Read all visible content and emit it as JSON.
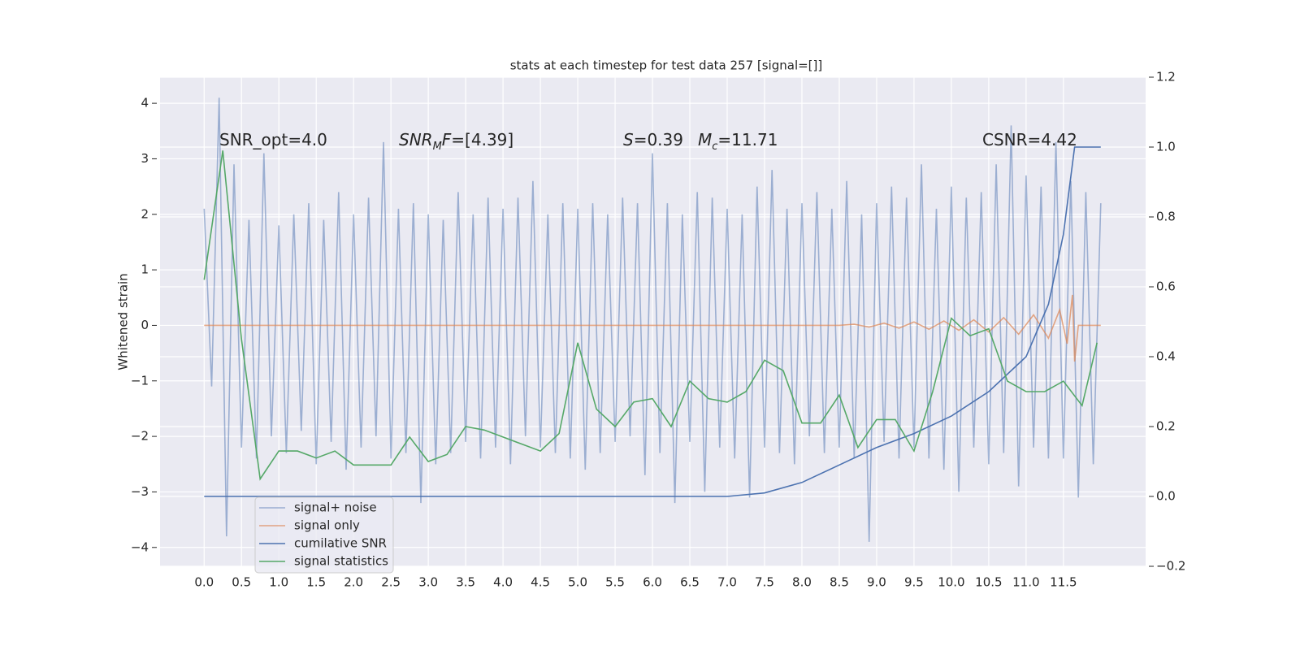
{
  "chart_data": {
    "type": "line",
    "title": "stats at each timestep for test data 257 [signal=[]]",
    "y_label": "Whitened strain",
    "xlim": [
      -0.59,
      12.6
    ],
    "ylim": [
      -4.34,
      4.47
    ],
    "y2lim": [
      -0.2,
      1.2
    ],
    "xticks": [
      {
        "value": 0,
        "label": "0.0"
      },
      {
        "value": 0.5,
        "label": "0.5"
      },
      {
        "value": 1,
        "label": "1.0"
      },
      {
        "value": 1.5,
        "label": "1.5"
      },
      {
        "value": 2,
        "label": "2.0"
      },
      {
        "value": 2.5,
        "label": "2.5"
      },
      {
        "value": 3,
        "label": "3.0"
      },
      {
        "value": 3.5,
        "label": "3.5"
      },
      {
        "value": 4,
        "label": "4.0"
      },
      {
        "value": 4.5,
        "label": "4.5"
      },
      {
        "value": 5,
        "label": "5.0"
      },
      {
        "value": 5.5,
        "label": "5.5"
      },
      {
        "value": 6,
        "label": "6.0"
      },
      {
        "value": 6.5,
        "label": "6.5"
      },
      {
        "value": 7,
        "label": "7.0"
      },
      {
        "value": 7.5,
        "label": "7.5"
      },
      {
        "value": 8,
        "label": "8.0"
      },
      {
        "value": 8.5,
        "label": "8.5"
      },
      {
        "value": 9,
        "label": "9.0"
      },
      {
        "value": 9.5,
        "label": "9.5"
      },
      {
        "value": 10,
        "label": "10.0"
      },
      {
        "value": 10.5,
        "label": "10.5"
      },
      {
        "value": 11,
        "label": "11.0"
      },
      {
        "value": 11.5,
        "label": "11.5"
      }
    ],
    "yticks": [
      {
        "value": -4,
        "label": "−4"
      },
      {
        "value": -3,
        "label": "−3"
      },
      {
        "value": -2,
        "label": "−2"
      },
      {
        "value": -1,
        "label": "−1"
      },
      0,
      1,
      2,
      3,
      4
    ],
    "y2ticks": [
      {
        "value": -0.2,
        "label": "−0.2"
      },
      {
        "value": 0,
        "label": "0.0"
      },
      0.2,
      0.4,
      0.6,
      0.8,
      {
        "value": 1,
        "label": "1.0"
      },
      1.2
    ],
    "grid": true,
    "legend": "lower left",
    "annotations": [
      [
        {
          "text": "SNR_opt=4.0"
        }
      ],
      [
        {
          "text": "SNR",
          "italic": true
        },
        {
          "text": "M",
          "italic": true,
          "sub": true
        },
        {
          "text": "F",
          "italic": true
        },
        {
          "text": "=[4.39]"
        }
      ],
      [
        {
          "text": "S",
          "italic": true
        },
        {
          "text": "=0.39"
        }
      ],
      [
        {
          "text": "M",
          "italic": true
        },
        {
          "text": "c",
          "italic": true,
          "sub": true
        },
        {
          "text": "=11.71"
        }
      ],
      [
        {
          "text": "CSNR=4.42"
        }
      ]
    ],
    "series": [
      {
        "name": "signal+ noise",
        "color": "#4c72b0",
        "opacity": 0.5,
        "axis": "y",
        "x": [
          0,
          0.1,
          0.2,
          0.3,
          0.4,
          0.5,
          0.6,
          0.7,
          0.8,
          0.9,
          1,
          1.1,
          1.2,
          1.3,
          1.4,
          1.5,
          1.6,
          1.7,
          1.8,
          1.9,
          2,
          2.1,
          2.2,
          2.3,
          2.4,
          2.5,
          2.6,
          2.7,
          2.8,
          2.9,
          3,
          3.1,
          3.2,
          3.3,
          3.4,
          3.5,
          3.6,
          3.7,
          3.8,
          3.9,
          4,
          4.1,
          4.2,
          4.3,
          4.4,
          4.5,
          4.6,
          4.7,
          4.8,
          4.9,
          5,
          5.1,
          5.2,
          5.3,
          5.4,
          5.5,
          5.6,
          5.7,
          5.8,
          5.9,
          6,
          6.1,
          6.2,
          6.3,
          6.4,
          6.5,
          6.6,
          6.7,
          6.8,
          6.9,
          7,
          7.1,
          7.2,
          7.3,
          7.4,
          7.5,
          7.6,
          7.7,
          7.8,
          7.9,
          8,
          8.1,
          8.2,
          8.3,
          8.4,
          8.5,
          8.6,
          8.7,
          8.8,
          8.9,
          9,
          9.1,
          9.2,
          9.3,
          9.4,
          9.5,
          9.6,
          9.7,
          9.8,
          9.9,
          10,
          10.1,
          10.2,
          10.3,
          10.4,
          10.5,
          10.6,
          10.7,
          10.8,
          10.9,
          11,
          11.1,
          11.2,
          11.3,
          11.4,
          11.5,
          11.6,
          11.7,
          11.8,
          11.9,
          12
        ],
        "values": [
          2.1,
          -1.1,
          4.1,
          -3.8,
          2.9,
          -2.2,
          1.9,
          -2.4,
          3.1,
          -2.0,
          1.8,
          -2.3,
          2.0,
          -1.9,
          2.2,
          -2.5,
          1.9,
          -2.1,
          2.4,
          -2.6,
          2.0,
          -2.2,
          2.3,
          -2.0,
          3.3,
          -2.4,
          2.1,
          -2.3,
          2.2,
          -3.2,
          2.0,
          -2.5,
          1.9,
          -2.3,
          2.4,
          -2.1,
          2.0,
          -2.4,
          2.3,
          -2.2,
          2.1,
          -2.5,
          2.3,
          -2.0,
          2.6,
          -2.2,
          2.0,
          -2.3,
          2.2,
          -2.4,
          2.1,
          -2.6,
          2.2,
          -2.3,
          2.0,
          -2.1,
          2.3,
          -2.0,
          2.2,
          -2.7,
          3.1,
          -2.3,
          2.2,
          -3.2,
          2.0,
          -2.1,
          2.4,
          -3.0,
          2.3,
          -2.2,
          2.1,
          -2.4,
          2.0,
          -3.1,
          2.5,
          -2.2,
          2.8,
          -2.3,
          2.1,
          -2.5,
          2.2,
          -2.0,
          2.4,
          -2.3,
          2.1,
          -2.2,
          2.6,
          -2.4,
          2.0,
          -3.9,
          2.2,
          -2.1,
          2.5,
          -2.4,
          2.3,
          -2.2,
          2.9,
          -2.4,
          2.1,
          -2.6,
          2.5,
          -3.0,
          2.3,
          -2.2,
          2.4,
          -2.5,
          2.9,
          -2.3,
          3.6,
          -2.9,
          2.7,
          -2.2,
          2.5,
          -2.4,
          3.3,
          -2.4,
          2.6,
          -3.1,
          2.4,
          -2.5,
          2.2
        ]
      },
      {
        "name": "signal only",
        "color": "#dd8452",
        "opacity": 0.7,
        "axis": "y",
        "x": [
          0,
          8.5,
          8.7,
          8.9,
          9.1,
          9.3,
          9.5,
          9.7,
          9.9,
          10.1,
          10.3,
          10.5,
          10.7,
          10.9,
          11.1,
          11.3,
          11.45,
          11.55,
          11.62,
          11.65,
          11.7,
          12
        ],
        "values": [
          0,
          0,
          0.02,
          -0.03,
          0.04,
          -0.05,
          0.06,
          -0.07,
          0.08,
          -0.09,
          0.1,
          -0.12,
          0.14,
          -0.16,
          0.19,
          -0.23,
          0.28,
          -0.33,
          0.55,
          -0.65,
          0,
          0
        ]
      },
      {
        "name": "cumilative SNR",
        "color": "#4c72b0",
        "opacity": 1,
        "axis": "y2",
        "x": [
          0,
          7,
          7.5,
          8,
          8.5,
          9,
          9.5,
          10,
          10.5,
          11,
          11.3,
          11.5,
          11.65,
          12
        ],
        "values": [
          0,
          0,
          0.01,
          0.04,
          0.09,
          0.14,
          0.18,
          0.23,
          0.3,
          0.4,
          0.55,
          0.75,
          1,
          1
        ]
      },
      {
        "name": "signal statistics",
        "color": "#55a868",
        "opacity": 1,
        "axis": "y2",
        "x": [
          0,
          0.25,
          0.5,
          0.75,
          1,
          1.25,
          1.5,
          1.75,
          2,
          2.25,
          2.5,
          2.75,
          3,
          3.25,
          3.5,
          3.75,
          4,
          4.25,
          4.5,
          4.75,
          5,
          5.25,
          5.5,
          5.75,
          6,
          6.25,
          6.5,
          6.75,
          7,
          7.25,
          7.5,
          7.75,
          8,
          8.25,
          8.5,
          8.75,
          9,
          9.25,
          9.5,
          9.75,
          10,
          10.25,
          10.5,
          10.75,
          11,
          11.25,
          11.5,
          11.75,
          11.95
        ],
        "values": [
          0.62,
          0.99,
          0.45,
          0.05,
          0.13,
          0.13,
          0.11,
          0.13,
          0.09,
          0.09,
          0.09,
          0.17,
          0.1,
          0.12,
          0.2,
          0.19,
          0.17,
          0.15,
          0.13,
          0.18,
          0.44,
          0.25,
          0.2,
          0.27,
          0.28,
          0.2,
          0.33,
          0.28,
          0.27,
          0.3,
          0.39,
          0.36,
          0.21,
          0.21,
          0.29,
          0.14,
          0.22,
          0.22,
          0.13,
          0.3,
          0.51,
          0.46,
          0.48,
          0.33,
          0.3,
          0.3,
          0.33,
          0.26,
          0.44
        ]
      }
    ]
  }
}
